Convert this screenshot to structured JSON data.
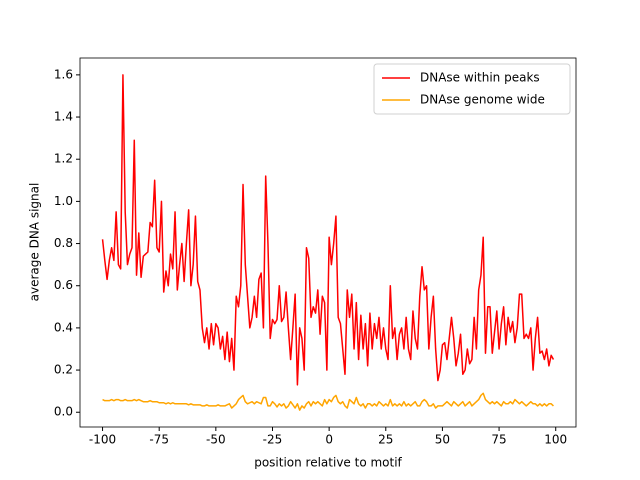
{
  "chart_data": {
    "type": "line",
    "xlabel": "position relative to motif",
    "ylabel": "average DNA signal",
    "x": [
      -100,
      -99,
      -98,
      -97,
      -96,
      -95,
      -94,
      -93,
      -92,
      -91,
      -90,
      -89,
      -88,
      -87,
      -86,
      -85,
      -84,
      -83,
      -82,
      -81,
      -80,
      -79,
      -78,
      -77,
      -76,
      -75,
      -74,
      -73,
      -72,
      -71,
      -70,
      -69,
      -68,
      -67,
      -66,
      -65,
      -64,
      -63,
      -62,
      -61,
      -60,
      -59,
      -58,
      -57,
      -56,
      -55,
      -54,
      -53,
      -52,
      -51,
      -50,
      -49,
      -48,
      -47,
      -46,
      -45,
      -44,
      -43,
      -42,
      -41,
      -40,
      -39,
      -38,
      -37,
      -36,
      -35,
      -34,
      -33,
      -32,
      -31,
      -30,
      -29,
      -28,
      -27,
      -26,
      -25,
      -24,
      -23,
      -22,
      -21,
      -20,
      -19,
      -18,
      -17,
      -16,
      -15,
      -14,
      -13,
      -12,
      -11,
      -10,
      -9,
      -8,
      -7,
      -6,
      -5,
      -4,
      -3,
      -2,
      -1,
      0,
      1,
      2,
      3,
      4,
      5,
      6,
      7,
      8,
      9,
      10,
      11,
      12,
      13,
      14,
      15,
      16,
      17,
      18,
      19,
      20,
      21,
      22,
      23,
      24,
      25,
      26,
      27,
      28,
      29,
      30,
      31,
      32,
      33,
      34,
      35,
      36,
      37,
      38,
      39,
      40,
      41,
      42,
      43,
      44,
      45,
      46,
      47,
      48,
      49,
      50,
      51,
      52,
      53,
      54,
      55,
      56,
      57,
      58,
      59,
      60,
      61,
      62,
      63,
      64,
      65,
      66,
      67,
      68,
      69,
      70,
      71,
      72,
      73,
      74,
      75,
      76,
      77,
      78,
      79,
      80,
      81,
      82,
      83,
      84,
      85,
      86,
      87,
      88,
      89,
      90,
      91,
      92,
      93,
      94,
      95,
      96,
      97,
      98,
      99
    ],
    "series": [
      {
        "name": "DNAse within peaks",
        "color": "#ff0000",
        "values": [
          0.82,
          0.72,
          0.63,
          0.72,
          0.78,
          0.72,
          0.95,
          0.7,
          0.68,
          1.6,
          0.95,
          0.7,
          0.75,
          0.78,
          1.29,
          0.65,
          0.85,
          0.64,
          0.74,
          0.75,
          0.76,
          0.9,
          0.88,
          1.1,
          0.78,
          0.76,
          1.0,
          0.57,
          0.67,
          0.6,
          0.75,
          0.68,
          0.95,
          0.58,
          0.7,
          0.8,
          0.62,
          0.8,
          0.96,
          0.6,
          0.7,
          0.93,
          0.62,
          0.58,
          0.4,
          0.33,
          0.4,
          0.3,
          0.42,
          0.32,
          0.42,
          0.4,
          0.3,
          0.36,
          0.25,
          0.38,
          0.24,
          0.35,
          0.2,
          0.55,
          0.5,
          0.6,
          1.08,
          0.7,
          0.55,
          0.4,
          0.45,
          0.55,
          0.45,
          0.63,
          0.66,
          0.4,
          1.12,
          0.8,
          0.35,
          0.44,
          0.42,
          0.44,
          0.6,
          0.43,
          0.45,
          0.57,
          0.4,
          0.25,
          0.4,
          0.56,
          0.13,
          0.4,
          0.35,
          0.2,
          0.78,
          0.73,
          0.45,
          0.5,
          0.47,
          0.58,
          0.37,
          0.55,
          0.52,
          0.2,
          0.83,
          0.7,
          0.8,
          0.93,
          0.45,
          0.42,
          0.3,
          0.18,
          0.58,
          0.45,
          0.56,
          0.3,
          0.52,
          0.25,
          0.46,
          0.3,
          0.42,
          0.22,
          0.47,
          0.3,
          0.42,
          0.35,
          0.45,
          0.3,
          0.4,
          0.3,
          0.25,
          0.6,
          0.35,
          0.4,
          0.25,
          0.37,
          0.4,
          0.3,
          0.45,
          0.3,
          0.25,
          0.48,
          0.35,
          0.3,
          0.55,
          0.69,
          0.58,
          0.6,
          0.3,
          0.45,
          0.55,
          0.3,
          0.15,
          0.2,
          0.32,
          0.33,
          0.25,
          0.35,
          0.45,
          0.35,
          0.22,
          0.28,
          0.37,
          0.18,
          0.2,
          0.3,
          0.23,
          0.25,
          0.45,
          0.3,
          0.58,
          0.65,
          0.83,
          0.28,
          0.5,
          0.5,
          0.28,
          0.38,
          0.48,
          0.3,
          0.42,
          0.5,
          0.32,
          0.45,
          0.38,
          0.43,
          0.33,
          0.4,
          0.56,
          0.56,
          0.35,
          0.37,
          0.35,
          0.4,
          0.2,
          0.35,
          0.45,
          0.28,
          0.29,
          0.25,
          0.3,
          0.22,
          0.27,
          0.25
        ]
      },
      {
        "name": "DNAse genome wide",
        "color": "#ffa500",
        "values": [
          0.06,
          0.055,
          0.055,
          0.055,
          0.06,
          0.055,
          0.06,
          0.06,
          0.055,
          0.055,
          0.06,
          0.055,
          0.055,
          0.055,
          0.06,
          0.055,
          0.06,
          0.055,
          0.05,
          0.05,
          0.05,
          0.055,
          0.05,
          0.05,
          0.05,
          0.045,
          0.045,
          0.045,
          0.04,
          0.045,
          0.04,
          0.045,
          0.04,
          0.04,
          0.04,
          0.04,
          0.04,
          0.04,
          0.035,
          0.04,
          0.035,
          0.035,
          0.035,
          0.035,
          0.03,
          0.03,
          0.035,
          0.03,
          0.03,
          0.03,
          0.03,
          0.035,
          0.03,
          0.03,
          0.03,
          0.035,
          0.04,
          0.02,
          0.03,
          0.04,
          0.06,
          0.07,
          0.08,
          0.05,
          0.04,
          0.045,
          0.05,
          0.04,
          0.05,
          0.045,
          0.04,
          0.07,
          0.07,
          0.03,
          0.03,
          0.05,
          0.04,
          0.025,
          0.04,
          0.03,
          0.04,
          0.02,
          0.03,
          0.05,
          0.035,
          0.02,
          0.04,
          0.01,
          0.03,
          0.02,
          0.04,
          0.05,
          0.03,
          0.05,
          0.04,
          0.05,
          0.04,
          0.03,
          0.06,
          0.04,
          0.06,
          0.05,
          0.07,
          0.08,
          0.05,
          0.04,
          0.05,
          0.03,
          0.02,
          0.06,
          0.05,
          0.04,
          0.07,
          0.04,
          0.03,
          0.04,
          0.02,
          0.04,
          0.04,
          0.03,
          0.04,
          0.03,
          0.05,
          0.04,
          0.03,
          0.04,
          0.03,
          0.06,
          0.03,
          0.04,
          0.03,
          0.04,
          0.03,
          0.05,
          0.03,
          0.04,
          0.03,
          0.04,
          0.05,
          0.03,
          0.03,
          0.05,
          0.06,
          0.05,
          0.03,
          0.03,
          0.04,
          0.02,
          0.03,
          0.03,
          0.03,
          0.04,
          0.05,
          0.04,
          0.03,
          0.05,
          0.04,
          0.03,
          0.04,
          0.05,
          0.03,
          0.04,
          0.05,
          0.03,
          0.04,
          0.05,
          0.06,
          0.08,
          0.09,
          0.06,
          0.05,
          0.04,
          0.05,
          0.04,
          0.05,
          0.04,
          0.03,
          0.05,
          0.04,
          0.04,
          0.05,
          0.04,
          0.06,
          0.05,
          0.04,
          0.05,
          0.04,
          0.03,
          0.04,
          0.05,
          0.04,
          0.04,
          0.03,
          0.04,
          0.03,
          0.04,
          0.03,
          0.04,
          0.04,
          0.03
        ]
      }
    ],
    "xlim": [
      -109.95,
      108.95
    ],
    "xticks": [
      -100,
      -75,
      -50,
      -25,
      0,
      25,
      50,
      75,
      100
    ],
    "ylim": [
      -0.07,
      1.68
    ],
    "yticks": [
      {
        "value": 0,
        "label": "0.0"
      },
      0.2,
      0.4,
      0.6,
      0.8,
      {
        "value": 1,
        "label": "1.0"
      },
      1.2,
      1.4,
      1.6
    ],
    "legend": "upper right",
    "grid": false
  }
}
